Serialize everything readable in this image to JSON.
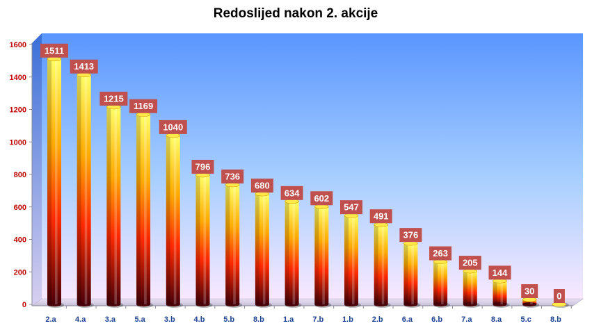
{
  "chart_data": {
    "type": "bar",
    "title": "Redoslijed nakon 2. akcije",
    "xlabel": "",
    "ylabel": "",
    "categories": [
      "2.a",
      "4.a",
      "3.a",
      "5.a",
      "3.b",
      "4.b",
      "5.b",
      "8.b",
      "1.a",
      "7.b",
      "1.b",
      "2.b",
      "6.a",
      "6.b",
      "7.a",
      "8.a",
      "5.c",
      "8.b"
    ],
    "values": [
      1511,
      1413,
      1215,
      1169,
      1040,
      796,
      736,
      680,
      634,
      602,
      547,
      491,
      376,
      263,
      205,
      144,
      30,
      0
    ],
    "ylim": [
      0,
      1600
    ],
    "yticks": [
      0,
      200,
      400,
      600,
      800,
      1000,
      1200,
      1400,
      1600
    ],
    "grid": false,
    "legend": "none",
    "data_labels": true,
    "colors": {
      "bar_top": "#ffff66",
      "bar_mid": "#ff2a00",
      "bar_bottom": "#4a0008",
      "label_box": "#c0504d",
      "plot_top": "#5a96ff",
      "plot_bottom": "#f8e8ff",
      "ytick_text": "#c00000",
      "xtick_text": "#1f3f8f"
    }
  }
}
